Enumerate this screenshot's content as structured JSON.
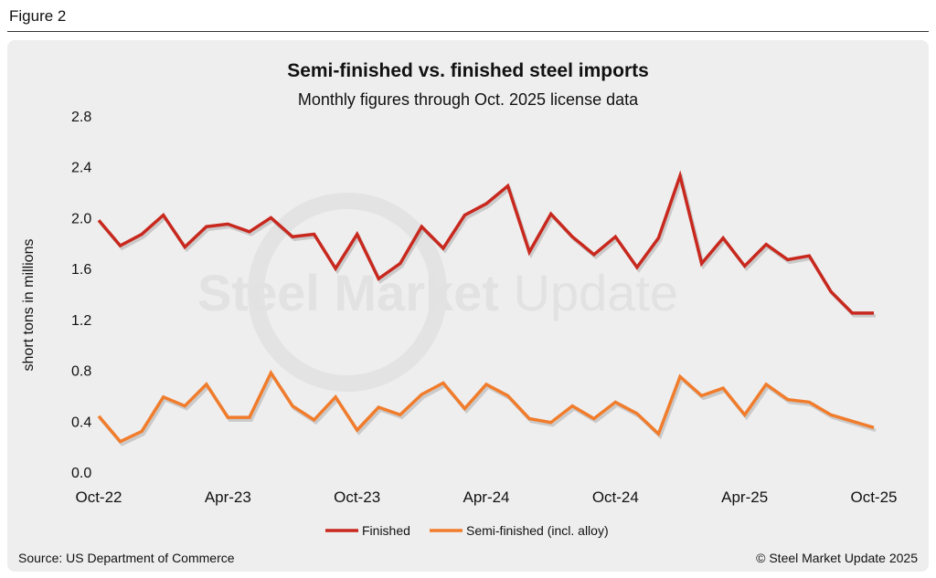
{
  "figure_label": "Figure 2",
  "footer": {
    "source": "Source: US Department of Commerce",
    "copyright": "© Steel Market Update 2025"
  },
  "watermark": "Steel Market Update",
  "chart_data": {
    "type": "line",
    "title": "Semi-finished vs. finished steel imports",
    "subtitle": "Monthly figures through Oct. 2025 license data",
    "xlabel": "",
    "ylabel": "short tons in millions",
    "ylim": [
      0,
      2.8
    ],
    "yticks": [
      "0.0",
      "0.4",
      "0.8",
      "1.2",
      "1.6",
      "2.0",
      "2.4",
      "2.8"
    ],
    "xtick_labels": [
      "Oct-22",
      "Apr-23",
      "Oct-23",
      "Apr-24",
      "Oct-24",
      "Apr-25",
      "Oct-25"
    ],
    "xtick_index": [
      0,
      6,
      12,
      18,
      24,
      30,
      36
    ],
    "grid": false,
    "legend_position": "bottom",
    "series": [
      {
        "name": "Finished",
        "color": "#c8281e",
        "values": [
          1.98,
          1.78,
          1.87,
          2.02,
          1.77,
          1.93,
          1.95,
          1.89,
          2.0,
          1.85,
          1.87,
          1.6,
          1.87,
          1.52,
          1.64,
          1.93,
          1.76,
          2.02,
          2.11,
          2.25,
          1.73,
          2.03,
          1.85,
          1.71,
          1.85,
          1.61,
          1.84,
          2.33,
          1.64,
          1.84,
          1.62,
          1.79,
          1.67,
          1.7,
          1.42,
          1.25,
          1.25
        ]
      },
      {
        "name": "Semi-finished (incl. alloy)",
        "color": "#f07c2c",
        "values": [
          0.44,
          0.24,
          0.32,
          0.59,
          0.52,
          0.69,
          0.43,
          0.43,
          0.78,
          0.52,
          0.41,
          0.59,
          0.33,
          0.51,
          0.45,
          0.61,
          0.7,
          0.5,
          0.69,
          0.6,
          0.42,
          0.39,
          0.52,
          0.42,
          0.55,
          0.46,
          0.3,
          0.75,
          0.6,
          0.66,
          0.45,
          0.69,
          0.57,
          0.55,
          0.45,
          0.4,
          0.35
        ]
      }
    ]
  }
}
